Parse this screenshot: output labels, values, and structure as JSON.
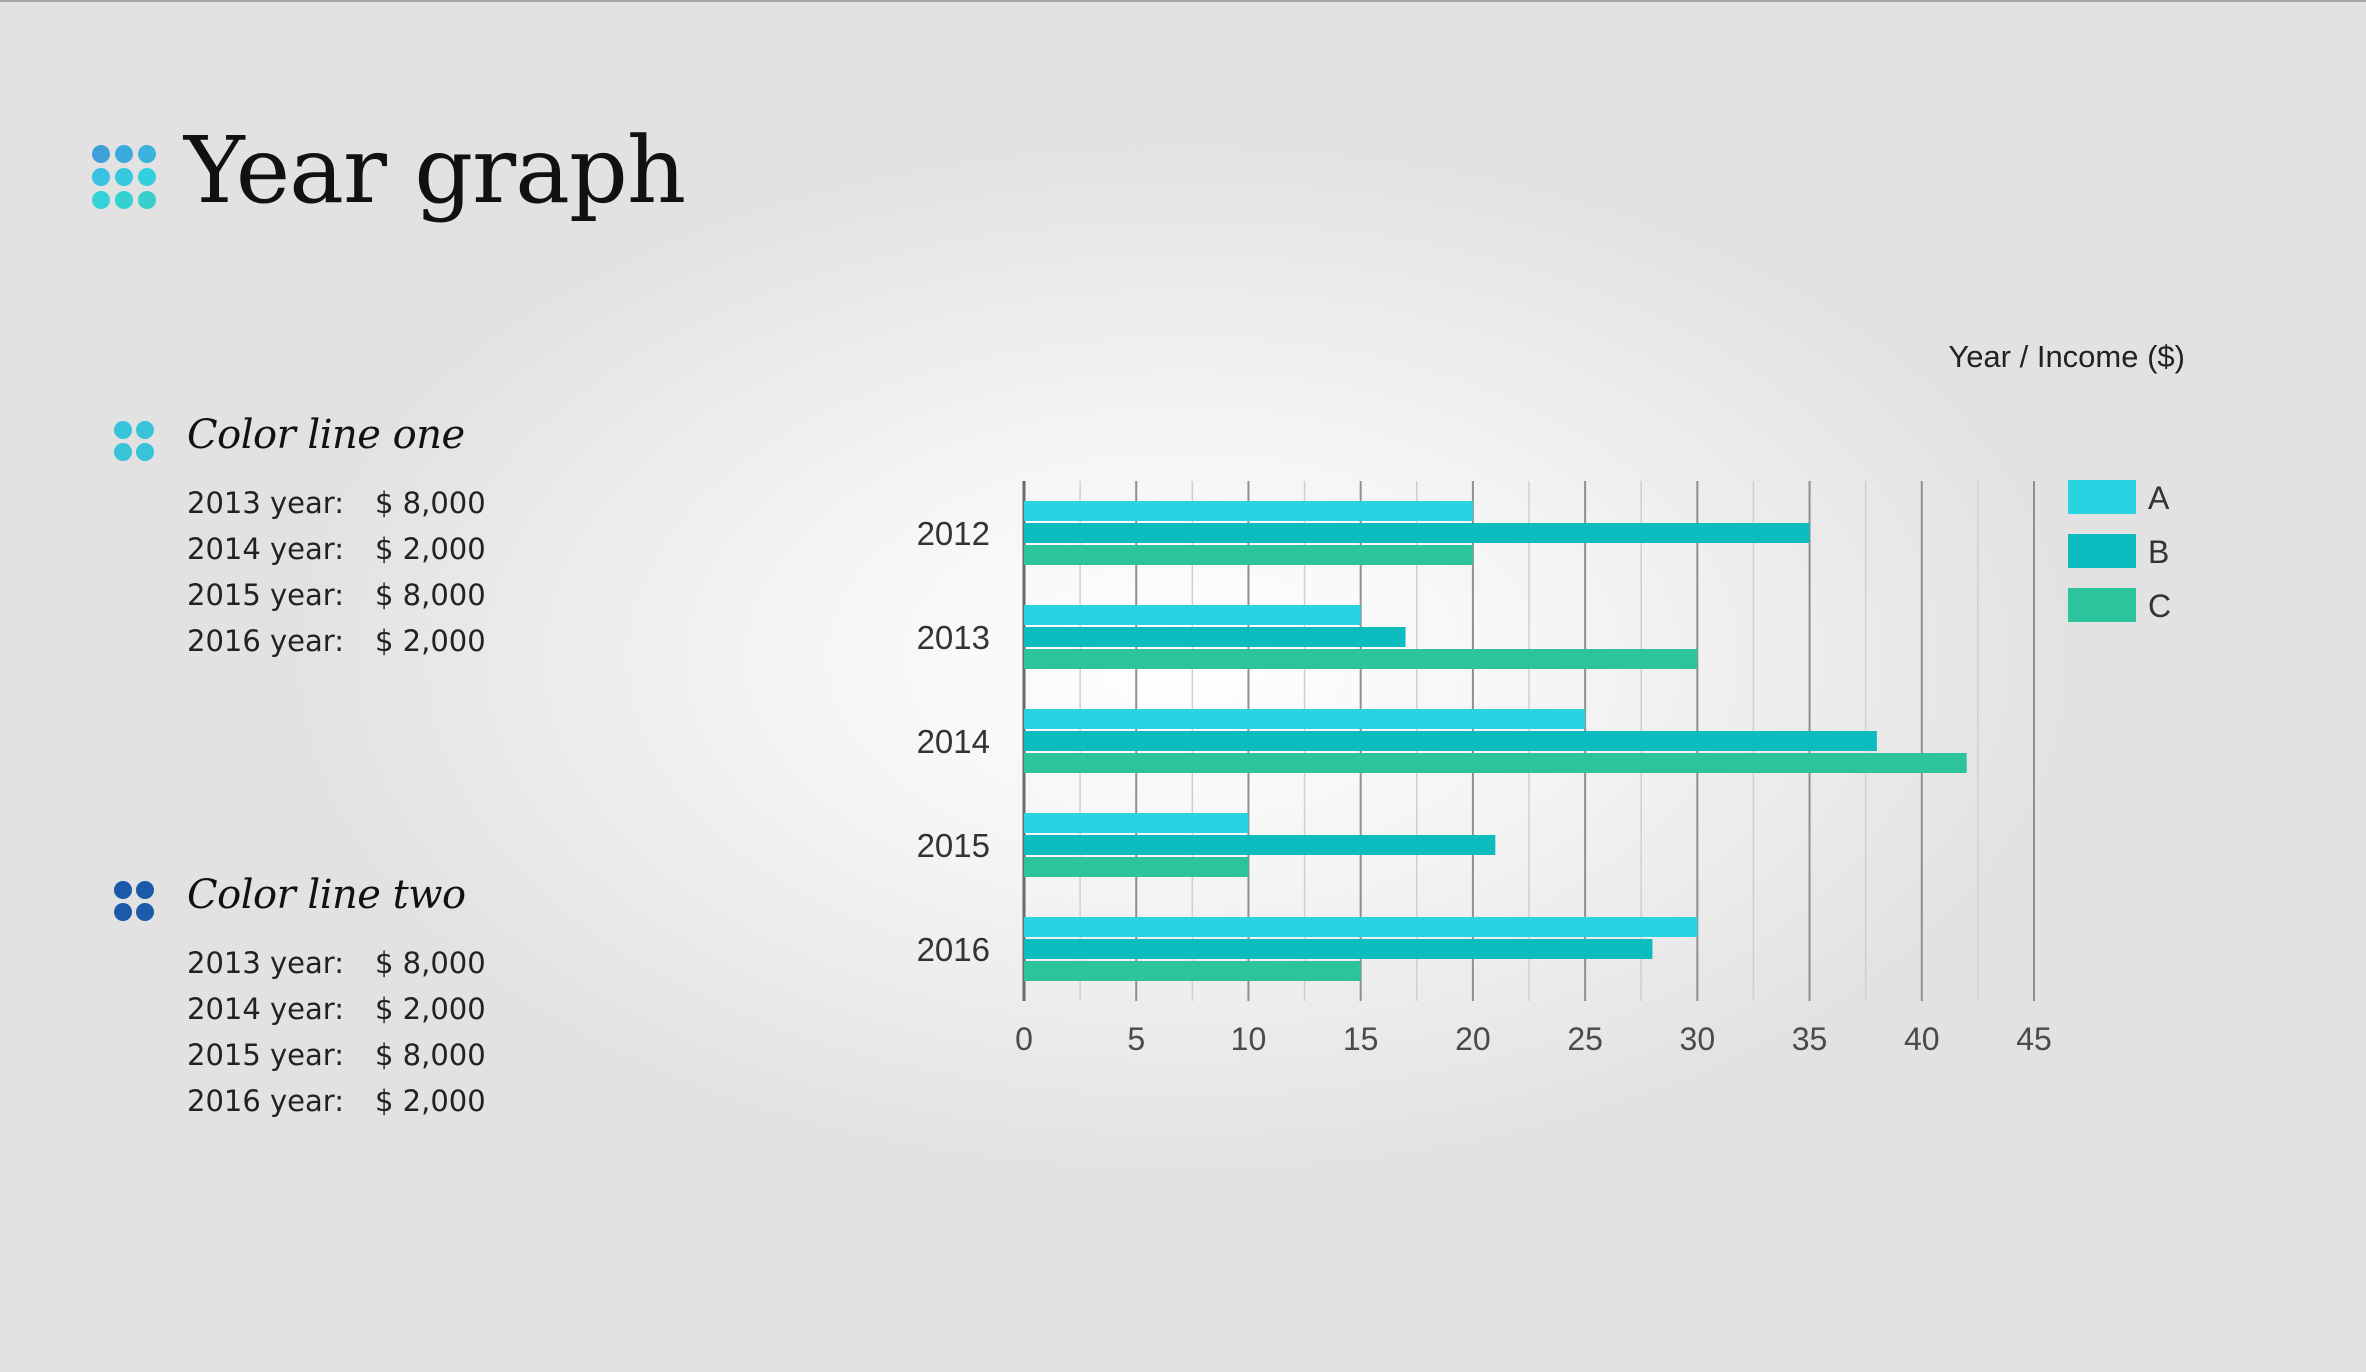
{
  "title": "Year graph",
  "colors": {
    "series_a": "#29d3e1",
    "series_b": "#0cbcbf",
    "series_c": "#2cc49d",
    "title_icon_dots": [
      "#3f9fd8",
      "#3aa9dc",
      "#3cb2de",
      "#38c1e0",
      "#34c9de",
      "#32cfdd",
      "#31d2d9",
      "#34d0d2",
      "#36cfcd"
    ],
    "line_one_icon": "#37c3da",
    "line_two_icon": "#1a5aa8"
  },
  "sections": [
    {
      "title": "Color line one",
      "icon": "four-dots-icon",
      "rows": [
        {
          "year": "2013 year:",
          "amount": "$ 8,000"
        },
        {
          "year": "2014 year:",
          "amount": "$ 2,000"
        },
        {
          "year": "2015 year:",
          "amount": "$ 8,000"
        },
        {
          "year": "2016 year:",
          "amount": "$ 2,000"
        }
      ]
    },
    {
      "title": "Color line two",
      "icon": "four-dots-icon",
      "rows": [
        {
          "year": "2013 year:",
          "amount": "$ 8,000"
        },
        {
          "year": "2014 year:",
          "amount": "$ 2,000"
        },
        {
          "year": "2015 year:",
          "amount": "$ 8,000"
        },
        {
          "year": "2016 year:",
          "amount": "$ 2,000"
        }
      ]
    }
  ],
  "chart_data": {
    "type": "bar",
    "orientation": "horizontal",
    "title": "Year / Income ($)",
    "categories": [
      "2012",
      "2013",
      "2014",
      "2015",
      "2016"
    ],
    "series": [
      {
        "name": "A",
        "values": [
          20,
          15,
          25,
          10,
          30
        ]
      },
      {
        "name": "B",
        "values": [
          35,
          17,
          38,
          21,
          28
        ]
      },
      {
        "name": "C",
        "values": [
          20,
          30,
          42,
          10,
          15
        ]
      }
    ],
    "xlim": [
      0,
      45
    ],
    "x_ticks": [
      0,
      5,
      10,
      15,
      20,
      25,
      30,
      35,
      40,
      45
    ],
    "grid": true,
    "legend": "top-right"
  }
}
